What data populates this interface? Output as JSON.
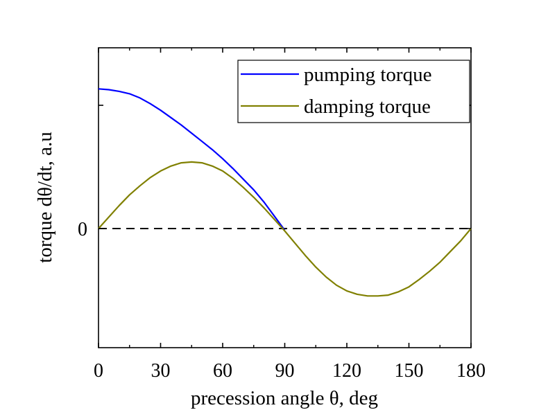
{
  "chart_data": {
    "type": "line",
    "xlabel": "precession angle θ, deg",
    "ylabel": "torque  dθ/dt, a.u",
    "xlim": [
      0,
      180
    ],
    "ylim": [
      -1.45,
      2.2
    ],
    "x_ticks": [
      0,
      30,
      60,
      90,
      120,
      150,
      180
    ],
    "x_tick_labels": [
      "0",
      "30",
      "60",
      "90",
      "120",
      "150",
      "180"
    ],
    "y_tick_labels": [
      {
        "value": 0,
        "label": "0"
      }
    ],
    "y_minor_ticks": [
      1.5
    ],
    "zero_line": true,
    "legend_position": "top-right",
    "series": [
      {
        "name": "pumping torque",
        "color": "#0000ff",
        "x": [
          0,
          5,
          10,
          15,
          20,
          25,
          30,
          35,
          40,
          45,
          50,
          55,
          60,
          65,
          70,
          75,
          80,
          85,
          90
        ],
        "y": [
          1.7,
          1.69,
          1.67,
          1.64,
          1.59,
          1.52,
          1.44,
          1.35,
          1.26,
          1.16,
          1.06,
          0.96,
          0.85,
          0.73,
          0.6,
          0.47,
          0.32,
          0.15,
          -0.02
        ]
      },
      {
        "name": "damping torque",
        "color": "#808000",
        "x": [
          0,
          5,
          10,
          15,
          20,
          25,
          30,
          35,
          40,
          45,
          50,
          55,
          60,
          65,
          70,
          75,
          80,
          85,
          90,
          95,
          100,
          105,
          110,
          115,
          120,
          125,
          130,
          135,
          140,
          145,
          150,
          155,
          160,
          165,
          170,
          175,
          180
        ],
        "y": [
          0.0,
          0.14,
          0.28,
          0.41,
          0.52,
          0.62,
          0.7,
          0.76,
          0.8,
          0.81,
          0.8,
          0.76,
          0.7,
          0.61,
          0.5,
          0.38,
          0.25,
          0.11,
          -0.03,
          -0.18,
          -0.33,
          -0.47,
          -0.59,
          -0.69,
          -0.76,
          -0.8,
          -0.82,
          -0.82,
          -0.81,
          -0.77,
          -0.71,
          -0.62,
          -0.52,
          -0.41,
          -0.28,
          -0.15,
          0.0
        ]
      }
    ]
  }
}
